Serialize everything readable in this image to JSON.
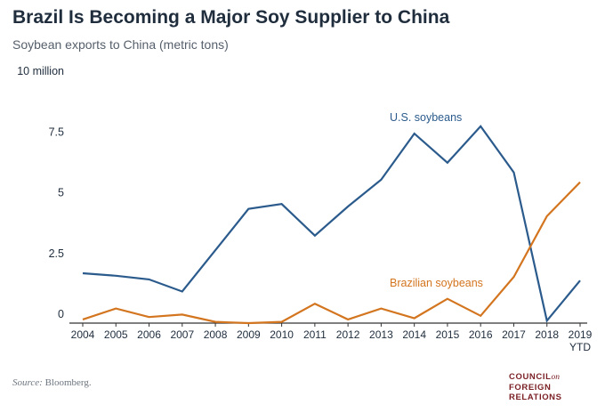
{
  "title": "Brazil Is Becoming a Major Soy Supplier to China",
  "subtitle": "Soybean exports to China (metric tons)",
  "source_label": "Source:",
  "source_text": "Bloomberg.",
  "logo": {
    "line1": "COUNCIL",
    "on": "on",
    "line2": "FOREIGN",
    "line3": "RELATIONS"
  },
  "colors": {
    "us": "#2b5b8c",
    "brazil": "#d3751f",
    "axis": "#333333",
    "grid": "#dddddd"
  },
  "chart_data": {
    "type": "line",
    "x": [
      "2004",
      "2005",
      "2006",
      "2007",
      "2008",
      "2009",
      "2010",
      "2011",
      "2012",
      "2013",
      "2014",
      "2015",
      "2016",
      "2017",
      "2018",
      "2019"
    ],
    "x_tick_labels": [
      "2004",
      "2005",
      "2006",
      "2007",
      "2008",
      "2009",
      "2010",
      "2011",
      "2012",
      "2013",
      "2014",
      "2015",
      "2016",
      "2017",
      "2018",
      "2019"
    ],
    "last_tick_sublabel": "YTD",
    "yticks": [
      {
        "value": 0,
        "label": "0"
      },
      {
        "value": 2.5,
        "label": "2.5"
      },
      {
        "value": 5,
        "label": "5"
      },
      {
        "value": 7.5,
        "label": "7.5"
      },
      {
        "value": 10,
        "label": "10 million"
      }
    ],
    "ylim": [
      0,
      10
    ],
    "series": [
      {
        "name": "U.S. soybeans",
        "color": "#2b5b8c",
        "values": [
          2.05,
          1.95,
          1.8,
          1.3,
          3.0,
          4.7,
          4.9,
          3.6,
          4.8,
          5.9,
          7.8,
          6.6,
          8.1,
          6.2,
          0.1,
          1.75
        ]
      },
      {
        "name": "Brazilian soybeans",
        "color": "#d3751f",
        "values": [
          0.15,
          0.6,
          0.25,
          0.35,
          0.05,
          0.0,
          0.05,
          0.8,
          0.15,
          0.6,
          0.2,
          1.0,
          0.3,
          1.9,
          4.4,
          5.8
        ]
      }
    ]
  }
}
